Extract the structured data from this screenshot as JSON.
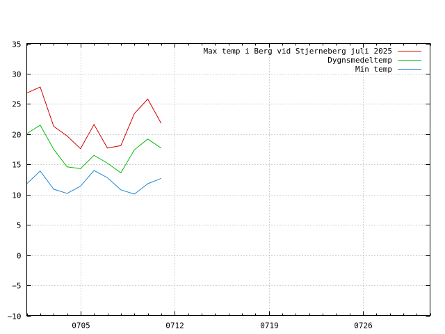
{
  "chart_data": {
    "type": "line",
    "title": "",
    "xlabel": "",
    "ylabel": "",
    "ylim": [
      -10,
      35
    ],
    "yticks": [
      -10,
      -5,
      0,
      5,
      10,
      15,
      20,
      25,
      30,
      35
    ],
    "xlim": [
      1,
      31
    ],
    "xticks": [
      {
        "day": 5,
        "label": "0705"
      },
      {
        "day": 12,
        "label": "0712"
      },
      {
        "day": 19,
        "label": "0719"
      },
      {
        "day": 26,
        "label": "0726"
      }
    ],
    "grid": true,
    "legend_position": "top-right",
    "x": [
      1,
      2,
      3,
      4,
      5,
      6,
      7,
      8,
      9,
      10,
      11
    ],
    "series": [
      {
        "name": "Max temp i Berg vid Stjerneberg juli 2025",
        "color": "#d40000",
        "values": [
          26.8,
          27.8,
          21.3,
          19.7,
          17.6,
          21.6,
          17.7,
          18.1,
          23.4,
          25.8,
          21.8
        ]
      },
      {
        "name": "Dygnsmedeltemp",
        "color": "#00bb00",
        "values": [
          20.1,
          21.5,
          17.5,
          14.6,
          14.3,
          16.5,
          15.2,
          13.6,
          17.4,
          19.2,
          17.7
        ]
      },
      {
        "name": "Min temp",
        "color": "#1e88d6",
        "values": [
          11.8,
          13.9,
          10.9,
          10.2,
          11.4,
          14.0,
          12.8,
          10.8,
          10.1,
          11.8,
          12.7
        ]
      }
    ]
  }
}
